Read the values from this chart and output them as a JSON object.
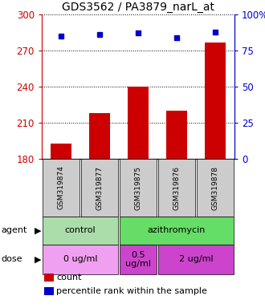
{
  "title": "GDS3562 / PA3879_narL_at",
  "samples": [
    "GSM319874",
    "GSM319877",
    "GSM319875",
    "GSM319876",
    "GSM319878"
  ],
  "bar_values": [
    193,
    218,
    240,
    220,
    277
  ],
  "percentile_values": [
    85,
    86,
    87,
    84,
    88
  ],
  "bar_color": "#cc0000",
  "dot_color": "#0000cc",
  "ylim_left": [
    180,
    300
  ],
  "ylim_right": [
    0,
    100
  ],
  "yticks_left": [
    180,
    210,
    240,
    270,
    300
  ],
  "yticks_right": [
    0,
    25,
    50,
    75,
    100
  ],
  "left_tick_color": "#cc0000",
  "right_tick_color": "#0000cc",
  "agent_spans": [
    [
      0,
      2,
      "control",
      "#aaddaa"
    ],
    [
      2,
      5,
      "azithromycin",
      "#66dd66"
    ]
  ],
  "dose_spans": [
    [
      0,
      2,
      "0 ug/ml",
      "#f0a0f0"
    ],
    [
      2,
      3,
      "0.5\nug/ml",
      "#cc44cc"
    ],
    [
      3,
      5,
      "2 ug/ml",
      "#cc44cc"
    ]
  ],
  "legend_count_color": "#cc0000",
  "legend_percentile_color": "#0000cc",
  "bg_sample": "#cccccc"
}
